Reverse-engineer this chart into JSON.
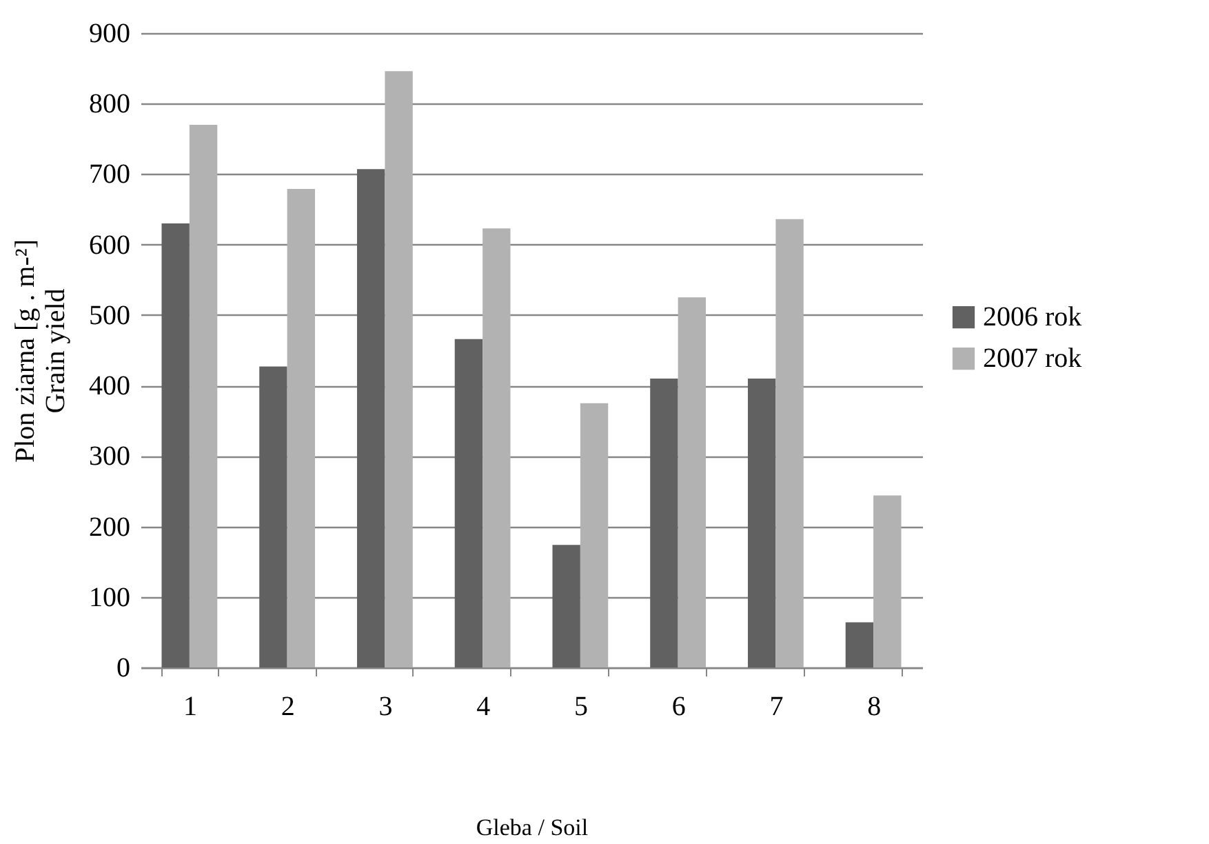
{
  "chart_data": {
    "type": "bar",
    "xlabel": "Gleba / Soil",
    "ylabel": "Plon ziarna [g . m-²]\nGrain yield",
    "categories": [
      "1",
      "2",
      "3",
      "4",
      "5",
      "6",
      "7",
      "8"
    ],
    "series": [
      {
        "name": "2006 rok",
        "color": "#616161",
        "values": [
          630,
          427,
          707,
          466,
          174,
          410,
          410,
          64
        ]
      },
      {
        "name": "2007 rok",
        "color": "#b2b2b2",
        "values": [
          770,
          679,
          846,
          623,
          375,
          525,
          636,
          244
        ]
      }
    ],
    "ylim": [
      0,
      900
    ],
    "yticks": [
      0,
      100,
      200,
      300,
      400,
      500,
      600,
      700,
      800,
      900
    ],
    "grid": "y",
    "legend": "right"
  }
}
